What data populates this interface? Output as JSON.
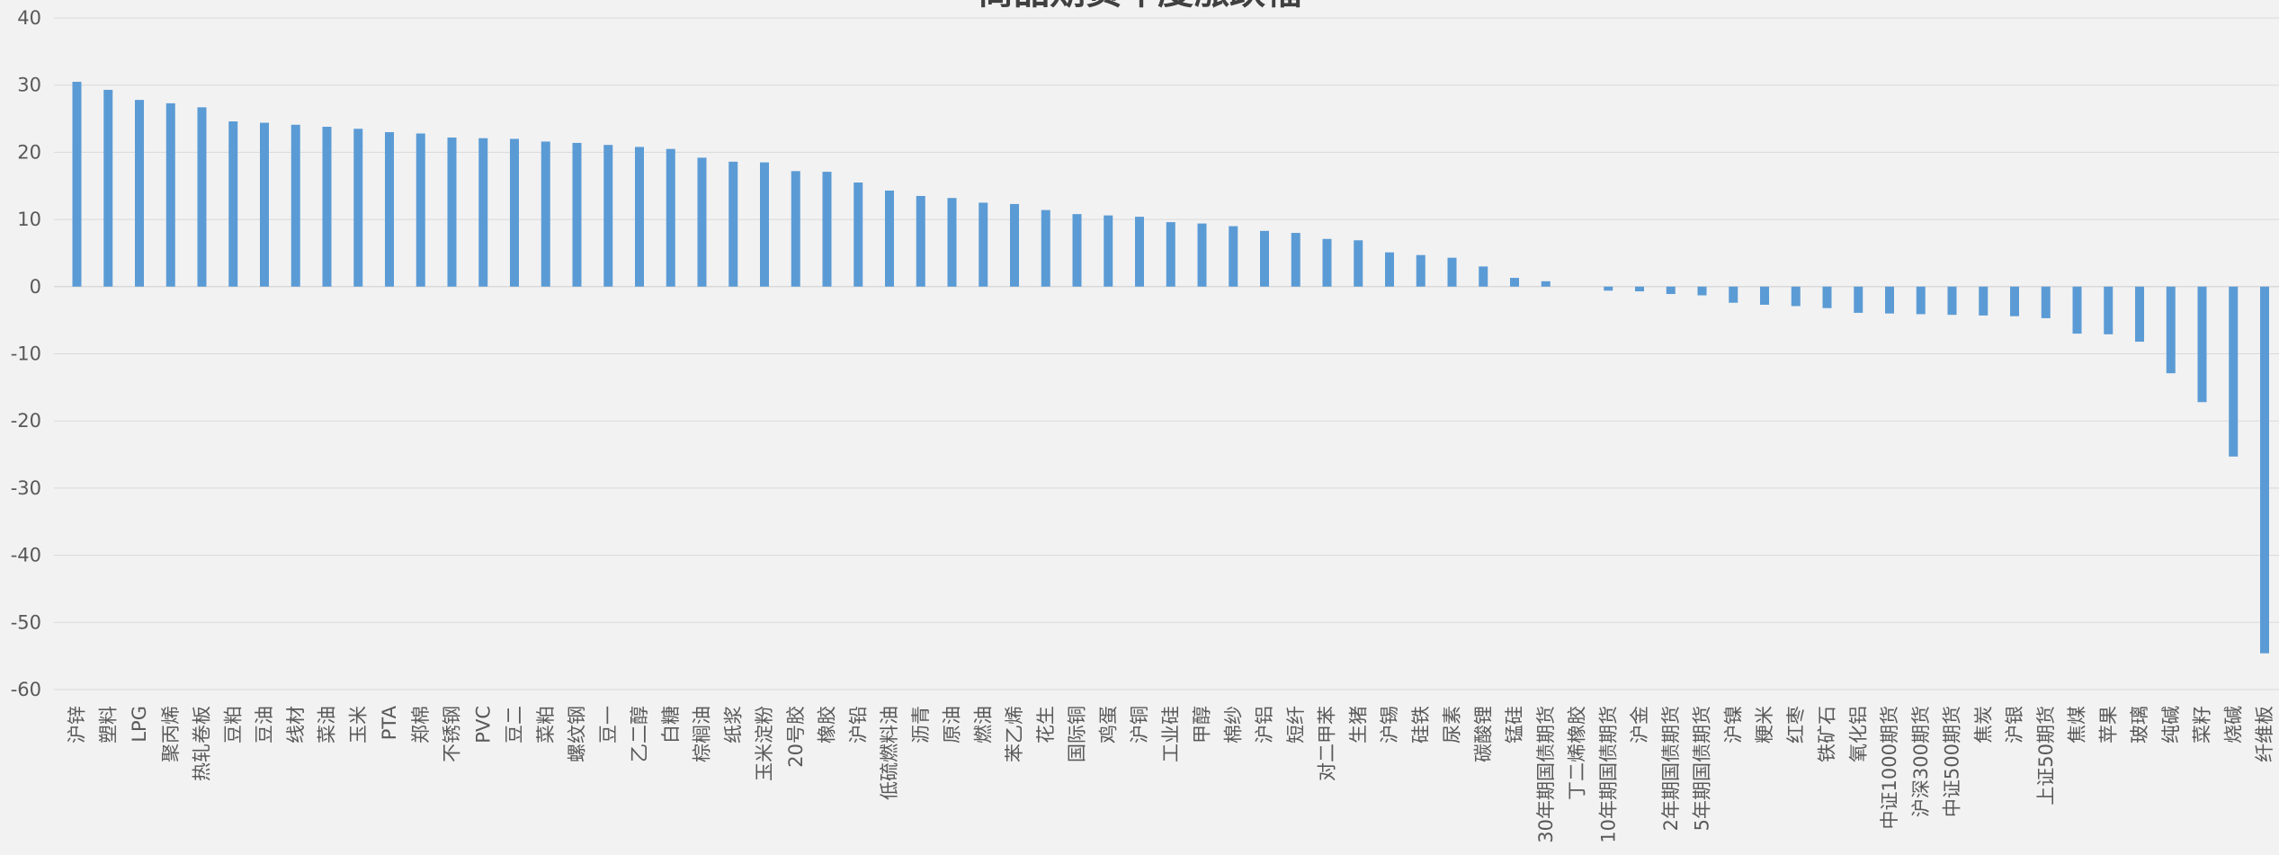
{
  "chart_data": {
    "type": "bar",
    "title": "商品期货年度涨跌幅",
    "categories": [
      "沪锌",
      "塑料",
      "LPG",
      "聚丙烯",
      "热轧卷板",
      "豆粕",
      "豆油",
      "线材",
      "菜油",
      "玉米",
      "PTA",
      "郑棉",
      "不锈钢",
      "PVC",
      "豆二",
      "菜粕",
      "螺纹钢",
      "豆一",
      "乙二醇",
      "白糖",
      "棕榈油",
      "纸浆",
      "玉米淀粉",
      "20号胶",
      "橡胶",
      "沪铅",
      "低硫燃料油",
      "沥青",
      "原油",
      "燃油",
      "苯乙烯",
      "花生",
      "国际铜",
      "鸡蛋",
      "沪铜",
      "工业硅",
      "甲醇",
      "棉纱",
      "沪铝",
      "短纤",
      "对二甲苯",
      "生猪",
      "沪锡",
      "硅铁",
      "尿素",
      "碳酸锂",
      "锰硅",
      "30年期国债期货",
      "丁二烯橡胶",
      "10年期国债期货",
      "沪金",
      "2年期国债期货",
      "5年期国债期货",
      "沪镍",
      "粳米",
      "红枣",
      "铁矿石",
      "氧化铝",
      "中证1000期货",
      "沪深300期货",
      "中证500期货",
      "焦炭",
      "沪银",
      "上证50期货",
      "焦煤",
      "苹果",
      "玻璃",
      "纯碱",
      "菜籽",
      "烧碱",
      "纤维板"
    ],
    "values": [
      30.5,
      29.3,
      27.8,
      27.3,
      26.7,
      24.6,
      24.4,
      24.1,
      23.8,
      23.5,
      23.0,
      22.8,
      22.2,
      22.1,
      22.0,
      21.6,
      21.4,
      21.1,
      20.8,
      20.5,
      19.2,
      18.6,
      18.5,
      17.2,
      17.1,
      15.5,
      14.3,
      13.5,
      13.2,
      12.5,
      12.3,
      11.4,
      10.8,
      10.6,
      10.4,
      9.6,
      9.4,
      9.0,
      8.3,
      8.0,
      7.1,
      6.9,
      5.1,
      4.7,
      4.3,
      3.0,
      1.3,
      0.8,
      0.0,
      -0.6,
      -0.7,
      -1.1,
      -1.3,
      -2.4,
      -2.7,
      -2.9,
      -3.2,
      -3.9,
      -4.0,
      -4.1,
      -4.2,
      -4.3,
      -4.4,
      -4.7,
      -7.0,
      -7.1,
      -8.2,
      -12.9,
      -17.2,
      -25.3,
      -54.6
    ],
    "ylim": [
      -60,
      40
    ],
    "yticks": [
      40,
      30,
      20,
      10,
      0,
      -10,
      -20,
      -30,
      -40,
      -50,
      -60
    ],
    "xlabel": "",
    "ylabel": "",
    "grid": true,
    "legend": "none",
    "colors": {
      "bar": "#5b9bd5",
      "background": "#f2f2f2",
      "grid": "#d9d9d9",
      "axis_text": "#595959",
      "title": "#404040"
    }
  }
}
